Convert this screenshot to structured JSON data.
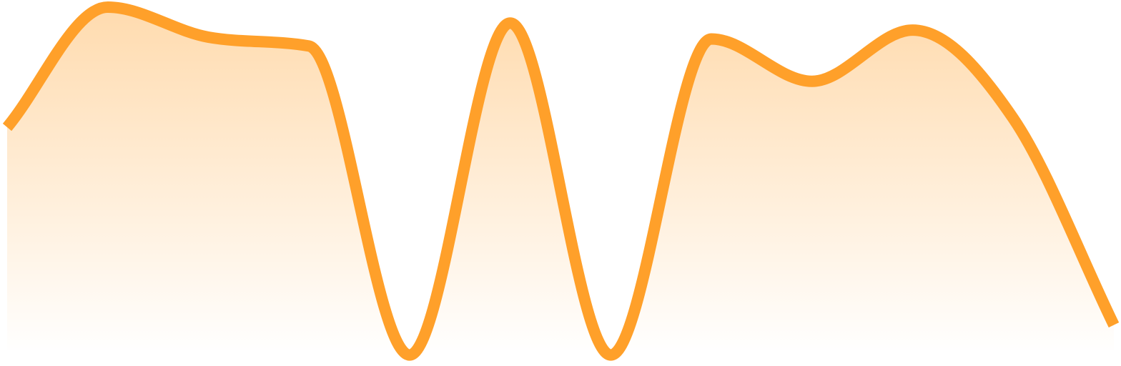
{
  "chart_data": {
    "type": "area",
    "x": [
      0,
      1,
      2,
      3,
      4,
      5,
      6,
      7,
      8,
      9,
      10,
      11
    ],
    "series": [
      {
        "values": [
          0.32,
          1.0,
          0.83,
          0.78,
          -0.97,
          0.91,
          -0.97,
          0.82,
          0.58,
          0.87,
          0.37,
          -0.8
        ]
      }
    ],
    "colors": {
      "line": "#ffa02a",
      "fill": "#ffa02a",
      "background": "#ffffff"
    },
    "fill_gradient": {
      "top_opacity": 0.38,
      "bottom_opacity": 0.0
    },
    "axes_visible": false,
    "grid": false,
    "legend": "none",
    "ylim": [
      -1.0,
      1.0
    ]
  }
}
